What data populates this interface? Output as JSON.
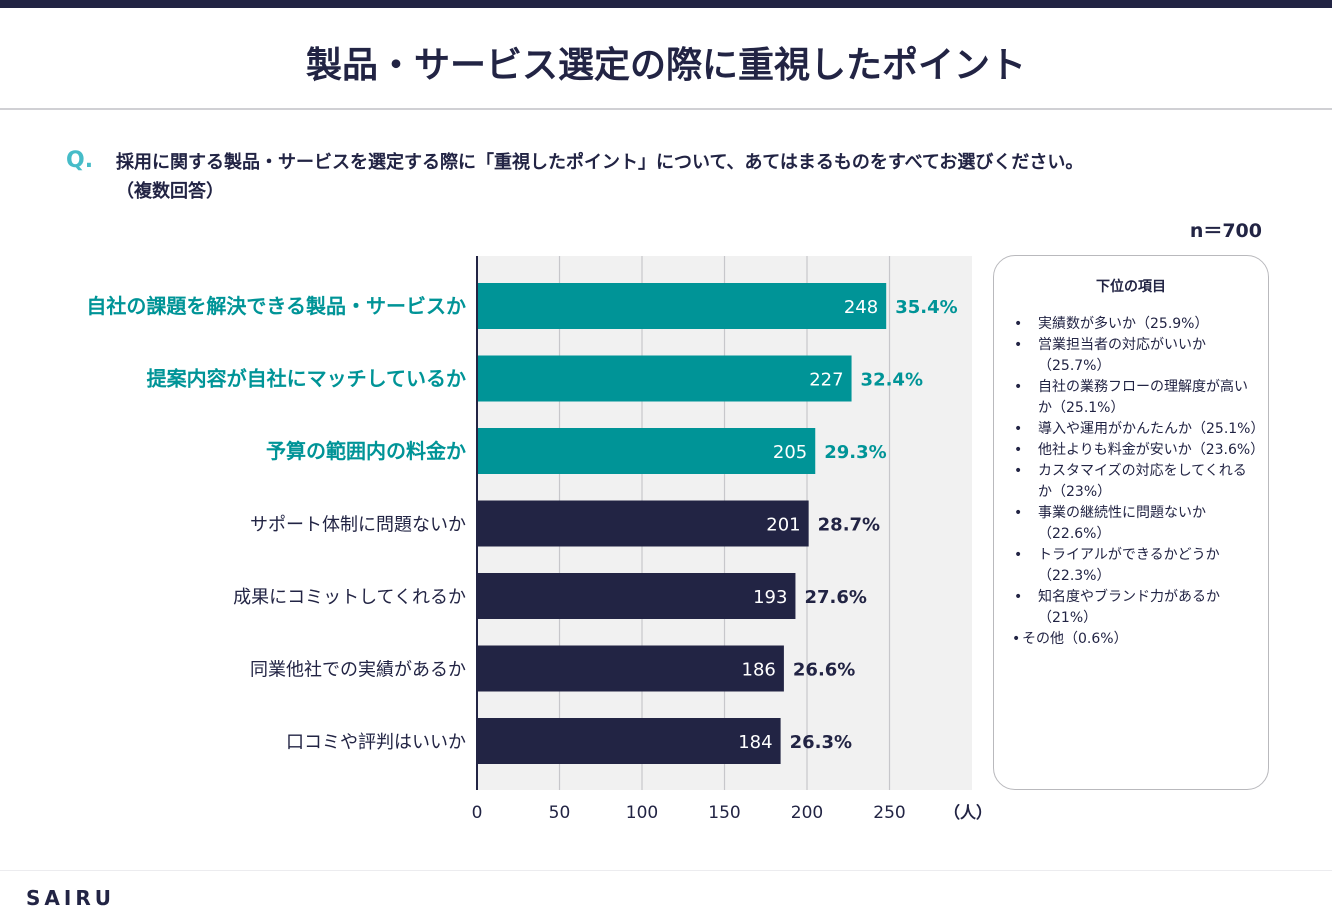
{
  "page": {
    "title": "製品・サービス選定の際に重視したポイント",
    "question_mark": "Q.",
    "question_line1": "採用に関する製品・サービスを選定する際に「重視したポイント」について、あてはまるものをすべてお選びください。",
    "question_line2": "（複数回答）",
    "sample_size": "n＝700",
    "brand": "SAIRU"
  },
  "colors": {
    "highlight": "#009497",
    "normal": "#222444",
    "grid": "#c7c7cb",
    "plot_bg": "#f1f1f1"
  },
  "chart_data": {
    "type": "bar",
    "orientation": "horizontal",
    "categories": [
      "自社の課題を解決できる製品・サービスか",
      "提案内容が自社にマッチしているか",
      "予算の範囲内の料金か",
      "サポート体制に問題ないか",
      "成果にコミットしてくれるか",
      "同業他社での実績があるか",
      "口コミや評判はいいか"
    ],
    "values": [
      248,
      227,
      205,
      201,
      193,
      186,
      184
    ],
    "percent_labels": [
      "35.4%",
      "32.4%",
      "29.3%",
      "28.7%",
      "27.6%",
      "26.6%",
      "26.3%"
    ],
    "highlighted": [
      true,
      true,
      true,
      false,
      false,
      false,
      false
    ],
    "xlim": [
      0,
      300
    ],
    "xticks": [
      0,
      50,
      100,
      150,
      200,
      250
    ],
    "xlabel": "（人）",
    "grid": true
  },
  "legend": {
    "title": "下位の項目",
    "items": [
      "実績数が多いか（25.9%）",
      "営業担当者の対応がいいか（25.7%）",
      "自社の業務フローの理解度が高いか（25.1%）",
      "導入や運用がかんたんか（25.1%）",
      "他社よりも料金が安いか（23.6%）",
      "カスタマイズの対応をしてくれるか（23%）",
      "事業の継続性に問題ないか（22.6%）",
      "トライアルができるかどうか（22.3%）",
      "知名度やブランド力があるか（21%）",
      "その他（0.6%）"
    ]
  }
}
